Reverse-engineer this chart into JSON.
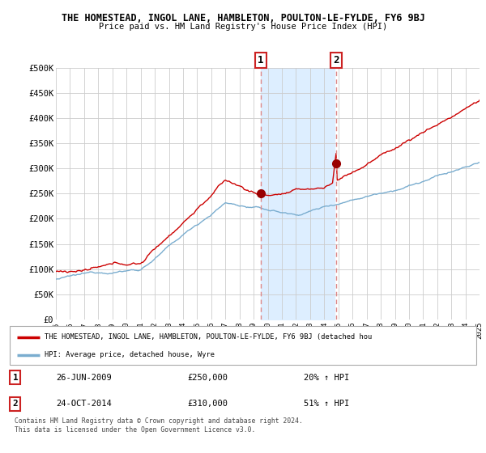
{
  "title": "THE HOMESTEAD, INGOL LANE, HAMBLETON, POULTON-LE-FYLDE, FY6 9BJ",
  "subtitle": "Price paid vs. HM Land Registry's House Price Index (HPI)",
  "yticks": [
    0,
    50000,
    100000,
    150000,
    200000,
    250000,
    300000,
    350000,
    400000,
    450000,
    500000
  ],
  "ytick_labels": [
    "£0",
    "£50K",
    "£100K",
    "£150K",
    "£200K",
    "£250K",
    "£300K",
    "£350K",
    "£400K",
    "£450K",
    "£500K"
  ],
  "xmin": 1995,
  "xmax": 2025,
  "ymin": 0,
  "ymax": 500000,
  "red_line_color": "#cc0000",
  "blue_line_color": "#7aadcf",
  "shade_color": "#ddeeff",
  "grid_color": "#cccccc",
  "sale1_x": 2009.5,
  "sale1_y": 250000,
  "sale2_x": 2014.833,
  "sale2_y": 310000,
  "vline_color": "#dd8888",
  "dot_color": "#990000",
  "legend_line1": "THE HOMESTEAD, INGOL LANE, HAMBLETON, POULTON-LE-FYLDE, FY6 9BJ (detached hou",
  "legend_line2": "HPI: Average price, detached house, Wyre",
  "table_row1_num": "1",
  "table_row1_date": "26-JUN-2009",
  "table_row1_price": "£250,000",
  "table_row1_hpi": "20% ↑ HPI",
  "table_row2_num": "2",
  "table_row2_date": "24-OCT-2014",
  "table_row2_price": "£310,000",
  "table_row2_hpi": "51% ↑ HPI",
  "footnote": "Contains HM Land Registry data © Crown copyright and database right 2024.\nThis data is licensed under the Open Government Licence v3.0.",
  "background_color": "#ffffff",
  "box_edge_color": "#cc2222"
}
